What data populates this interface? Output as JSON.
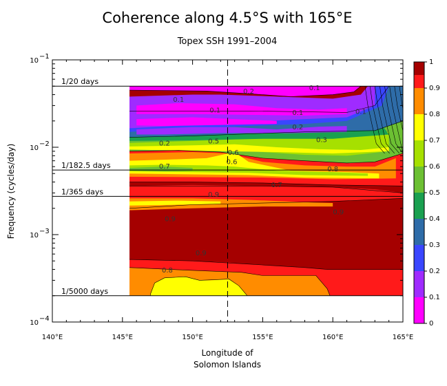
{
  "chart_data": {
    "type": "heatmap",
    "title": "Coherence along 4.5°S with 165°E",
    "subtitle": "Topex SSH 1991–2004",
    "xlabel": "Longitude of",
    "xlabel_line2": "Solomon Islands",
    "ylabel": "Frequency (cycles/day)",
    "x_ticks": [
      "140°E",
      "145°E",
      "150°E",
      "155°E",
      "160°E",
      "165°E"
    ],
    "y_ticks": [
      {
        "base": "10",
        "exp": "−1"
      },
      {
        "base": "10",
        "exp": "−2"
      },
      {
        "base": "10",
        "exp": "−3"
      },
      {
        "base": "10",
        "exp": "−4"
      }
    ],
    "xlim": [
      140,
      165
    ],
    "ylim": [
      0.0001,
      0.1
    ],
    "yscale": "log",
    "data_xlim": [
      145.5,
      165
    ],
    "data_ylim": [
      0.0002,
      0.05
    ],
    "reference_longitude": 152.5,
    "period_lines": [
      {
        "label": "1/20 days",
        "frequency": 0.05
      },
      {
        "label": "1/182.5 days",
        "frequency": 0.005479
      },
      {
        "label": "1/365 days",
        "frequency": 0.00274
      },
      {
        "label": "1/5000 days",
        "frequency": 0.0002
      }
    ],
    "contour_labels": [
      {
        "text": "0.1",
        "x": 149,
        "y": 0.033
      },
      {
        "text": "0.1",
        "x": 151.6,
        "y": 0.025
      },
      {
        "text": "0.1",
        "x": 157.5,
        "y": 0.0235
      },
      {
        "text": "0.1",
        "x": 158.7,
        "y": 0.045
      },
      {
        "text": "0.1",
        "x": 162,
        "y": 0.024
      },
      {
        "text": "0.2",
        "x": 154,
        "y": 0.041
      },
      {
        "text": "0.2",
        "x": 157.5,
        "y": 0.016
      },
      {
        "text": "0.2",
        "x": 148,
        "y": 0.0105
      },
      {
        "text": "0.3",
        "x": 159.2,
        "y": 0.0115
      },
      {
        "text": "0.5",
        "x": 151.5,
        "y": 0.011
      },
      {
        "text": "0.6",
        "x": 152.9,
        "y": 0.0082
      },
      {
        "text": "0.6",
        "x": 152.8,
        "y": 0.0064
      },
      {
        "text": "0.7",
        "x": 148,
        "y": 0.0057
      },
      {
        "text": "0.7",
        "x": 156,
        "y": 0.0035
      },
      {
        "text": "0.8",
        "x": 160,
        "y": 0.0053
      },
      {
        "text": "0.9",
        "x": 151.5,
        "y": 0.0027
      },
      {
        "text": "0.9",
        "x": 148.4,
        "y": 0.00142
      },
      {
        "text": "0.9",
        "x": 160.4,
        "y": 0.0017
      },
      {
        "text": "0.9",
        "x": 150.6,
        "y": 0.00058
      },
      {
        "text": "0.8",
        "x": 148.2,
        "y": 0.00037
      }
    ],
    "colorbar": {
      "ticks": [
        "1",
        "0.9",
        "0.8",
        "0.7",
        "0.6",
        "0.5",
        "0.4",
        "0.3",
        "0.2",
        "0.1",
        "0"
      ],
      "levels": [
        {
          "from": 0.0,
          "to": 0.1,
          "color": "#ff00ff"
        },
        {
          "from": 0.1,
          "to": 0.2,
          "color": "#9f2bff"
        },
        {
          "from": 0.2,
          "to": 0.3,
          "color": "#3a46ff"
        },
        {
          "from": 0.3,
          "to": 0.4,
          "color": "#2e6ca8"
        },
        {
          "from": 0.4,
          "to": 0.5,
          "color": "#1aa050"
        },
        {
          "from": 0.5,
          "to": 0.6,
          "color": "#6cc033"
        },
        {
          "from": 0.6,
          "to": 0.7,
          "color": "#a6e000"
        },
        {
          "from": 0.7,
          "to": 0.8,
          "color": "#ffff00"
        },
        {
          "from": 0.8,
          "to": 0.9,
          "color": "#ff8c00"
        },
        {
          "from": 0.9,
          "to": 0.95,
          "color": "#ff1a1a"
        },
        {
          "from": 0.95,
          "to": 1.0,
          "color": "#a50000"
        }
      ]
    },
    "bands": [
      {
        "f_top": 0.05,
        "f_bot": 0.0235,
        "level": 1,
        "x_profile": [
          [
            145.5,
            0
          ],
          [
            160,
            0
          ],
          [
            162,
            0
          ],
          [
            163,
            0
          ],
          [
            164,
            0
          ],
          [
            165,
            0
          ]
        ],
        "shape": "magenta_top"
      },
      {
        "level_region": "purple",
        "note": "0.1–0.2 patches"
      },
      {
        "level_region": "blue",
        "note": "0.2–0.3"
      },
      {
        "level_region": "green",
        "note": "0.4–0.6"
      },
      {
        "level_region": "yellow",
        "note": "0.6–0.8"
      },
      {
        "level_region": "orange",
        "note": "0.8–0.9"
      },
      {
        "level_region": "red",
        "note": "0.9–0.95"
      },
      {
        "level_region": "darkred",
        "note": "> 0.95"
      }
    ]
  }
}
